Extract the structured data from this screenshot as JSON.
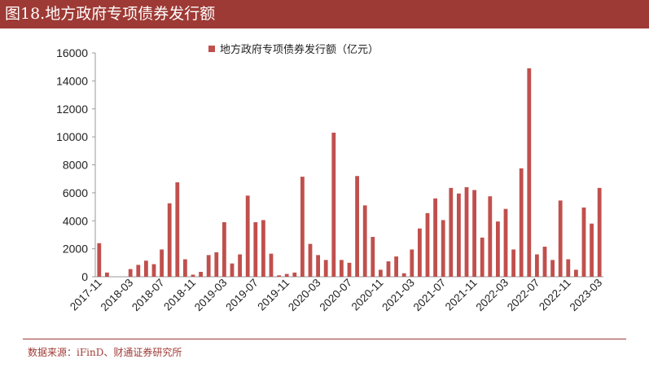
{
  "figure": {
    "title": "图18.地方政府专项债券发行额",
    "source": "数据来源：iFinD、财通证券研究所",
    "accent_color": "#9e3a35",
    "bar_color": "#c0504d"
  },
  "chart_data": {
    "type": "bar",
    "title": "",
    "xlabel": "",
    "ylabel": "",
    "ylim": [
      0,
      16000
    ],
    "y_ticks": [
      "0",
      "2000",
      "4000",
      "6000",
      "8000",
      "10000",
      "12000",
      "14000",
      "16000"
    ],
    "grid": false,
    "legend_position": "top-center",
    "categories": [
      "2017-11",
      "2017-12",
      "2018-01",
      "2018-02",
      "2018-03",
      "2018-04",
      "2018-05",
      "2018-06",
      "2018-07",
      "2018-08",
      "2018-09",
      "2018-10",
      "2018-11",
      "2018-12",
      "2019-01",
      "2019-02",
      "2019-03",
      "2019-04",
      "2019-05",
      "2019-06",
      "2019-07",
      "2019-08",
      "2019-09",
      "2019-10",
      "2019-11",
      "2019-12",
      "2020-01",
      "2020-02",
      "2020-03",
      "2020-04",
      "2020-05",
      "2020-06",
      "2020-07",
      "2020-08",
      "2020-09",
      "2020-10",
      "2020-11",
      "2020-12",
      "2021-01",
      "2021-02",
      "2021-03",
      "2021-04",
      "2021-05",
      "2021-06",
      "2021-07",
      "2021-08",
      "2021-09",
      "2021-10",
      "2021-11",
      "2021-12",
      "2022-01",
      "2022-02",
      "2022-03",
      "2022-04",
      "2022-05",
      "2022-06",
      "2022-07",
      "2022-08",
      "2022-09",
      "2022-10",
      "2022-11",
      "2022-12",
      "2023-01",
      "2023-02",
      "2023-03"
    ],
    "tick_labels": [
      "2017-11",
      "2018-03",
      "2018-07",
      "2018-11",
      "2019-03",
      "2019-07",
      "2019-11",
      "2020-03",
      "2020-07",
      "2020-11",
      "2021-03",
      "2021-07",
      "2021-11",
      "2022-03",
      "2022-07",
      "2022-11",
      "2023-03"
    ],
    "series": [
      {
        "name": "地方政府专项债券发行额（亿元）",
        "values": [
          2400,
          300,
          0,
          0,
          550,
          850,
          1150,
          900,
          1950,
          5250,
          6750,
          1250,
          150,
          350,
          1550,
          1750,
          3900,
          950,
          1600,
          5800,
          3900,
          4050,
          1650,
          100,
          200,
          300,
          7150,
          2350,
          1550,
          1200,
          10300,
          1200,
          1000,
          7200,
          5100,
          2850,
          500,
          1100,
          1450,
          250,
          1950,
          3450,
          4550,
          5600,
          4050,
          6350,
          5950,
          6400,
          6200,
          2800,
          5750,
          3950,
          4850,
          1950,
          7750,
          14900,
          1600,
          2150,
          1200,
          5450,
          1250,
          500,
          4950,
          3800,
          6350
        ]
      }
    ]
  }
}
